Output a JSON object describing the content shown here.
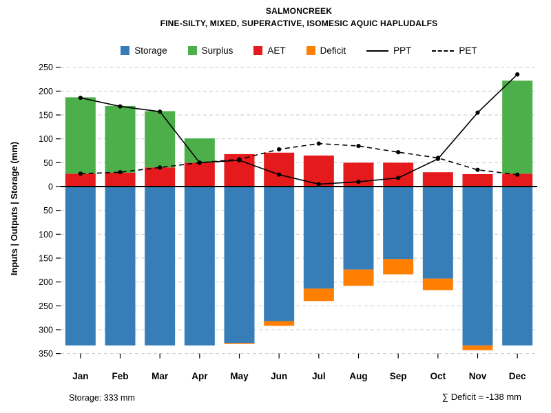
{
  "header": {
    "title": "SALMONCREEK",
    "subtitle": "FINE-SILTY, MIXED, SUPERACTIVE, ISOMESIC AQUIC HAPLUDALFS"
  },
  "footer": {
    "storage_note": "Storage: 333 mm",
    "deficit_note": "∑ Deficit = -138 mm"
  },
  "chart_data": {
    "type": "bar+line",
    "subtype": "soil-water-balance-mirrored-stacked-bars",
    "title": "SALMONCREEK",
    "subtitle": "FINE-SILTY, MIXED, SUPERACTIVE, ISOMESIC AQUIC HAPLUDALFS",
    "ylabel": "Inputs | Outputs | Storage   (mm)",
    "categories": [
      "Jan",
      "Feb",
      "Mar",
      "Apr",
      "May",
      "Jun",
      "Jul",
      "Aug",
      "Sep",
      "Oct",
      "Nov",
      "Dec"
    ],
    "series": [
      {
        "name": "AET",
        "type": "bar-up",
        "color": "#E41A1C",
        "values": [
          27,
          29,
          40,
          50,
          68,
          71,
          65,
          50,
          50,
          30,
          26,
          27
        ]
      },
      {
        "name": "Surplus",
        "type": "bar-up-stacked",
        "color": "#4DAF4A",
        "values": [
          160,
          140,
          118,
          51,
          0,
          0,
          0,
          0,
          0,
          0,
          0,
          195
        ]
      },
      {
        "name": "Storage",
        "type": "bar-down",
        "color": "#377EB8",
        "values": [
          333,
          333,
          333,
          333,
          328,
          282,
          214,
          174,
          152,
          193,
          333,
          333
        ]
      },
      {
        "name": "Deficit",
        "type": "bar-down-stacked",
        "color": "#FF7F00",
        "values": [
          0,
          0,
          0,
          0,
          2,
          10,
          26,
          34,
          32,
          24,
          10,
          0
        ]
      },
      {
        "name": "PPT",
        "type": "line-solid",
        "color": "#000000",
        "values": [
          186,
          168,
          157,
          50,
          55,
          25,
          5,
          10,
          18,
          58,
          155,
          235
        ]
      },
      {
        "name": "PET",
        "type": "line-dashed",
        "color": "#000000",
        "values": [
          27,
          30,
          40,
          50,
          57,
          78,
          90,
          85,
          72,
          60,
          35,
          25
        ]
      }
    ],
    "yticks_above": [
      0,
      50,
      100,
      150,
      200,
      250
    ],
    "yticks_below": [
      50,
      100,
      150,
      200,
      250,
      300,
      350
    ],
    "ylim_above": 250,
    "ylim_below": 350,
    "grid": "horizontal dashed gridlines every 50 mm; solid black zero line",
    "legend_position": "top center",
    "legend": [
      {
        "label": "Storage",
        "type": "swatch",
        "color": "#377EB8"
      },
      {
        "label": "Surplus",
        "type": "swatch",
        "color": "#4DAF4A"
      },
      {
        "label": "AET",
        "type": "swatch",
        "color": "#E41A1C"
      },
      {
        "label": "Deficit",
        "type": "swatch",
        "color": "#FF7F00"
      },
      {
        "label": "PPT",
        "type": "line-solid",
        "color": "#000000"
      },
      {
        "label": "PET",
        "type": "line-dashed",
        "color": "#000000"
      }
    ]
  }
}
